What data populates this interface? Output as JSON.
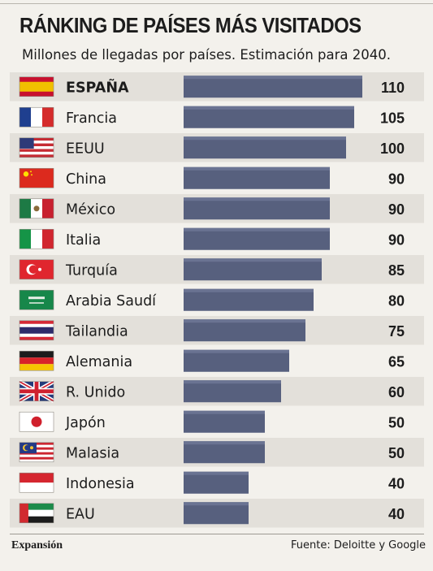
{
  "chart_data": {
    "type": "bar",
    "orientation": "horizontal",
    "title": "RÁNKING DE PAÍSES MÁS VISITADOS",
    "subtitle": "Millones de llegadas por países. Estimación para 2040.",
    "categories": [
      "ESPAÑA",
      "Francia",
      "EEUU",
      "China",
      "México",
      "Italia",
      "Turquía",
      "Arabia Saudí",
      "Tailandia",
      "Alemania",
      "R. Unido",
      "Japón",
      "Malasia",
      "Indonesia",
      "EAU"
    ],
    "values": [
      110,
      105,
      100,
      90,
      90,
      90,
      85,
      80,
      75,
      65,
      60,
      50,
      50,
      40,
      40
    ],
    "value_labels": [
      "110",
      "105",
      "100",
      "90",
      "90",
      "90",
      "85",
      "80",
      "75",
      "65",
      "60",
      "50",
      "50",
      "40",
      "40"
    ],
    "flags": [
      "spain-flag-icon",
      "france-flag-icon",
      "usa-flag-icon",
      "china-flag-icon",
      "mexico-flag-icon",
      "italy-flag-icon",
      "turkey-flag-icon",
      "saudi-arabia-flag-icon",
      "thailand-flag-icon",
      "germany-flag-icon",
      "uk-flag-icon",
      "japan-flag-icon",
      "malaysia-flag-icon",
      "indonesia-flag-icon",
      "uae-flag-icon"
    ],
    "highlight": "ESPAÑA",
    "xlim": [
      0,
      110
    ],
    "grid": false,
    "legend": "none",
    "colors": {
      "bar": "#57607e",
      "bar_top": "#6a7392",
      "row_band": "#e3e0da",
      "text": "#1c1c1c"
    }
  },
  "footer": {
    "brand": "Expansión",
    "source": "Fuente: Deloitte y Google"
  }
}
